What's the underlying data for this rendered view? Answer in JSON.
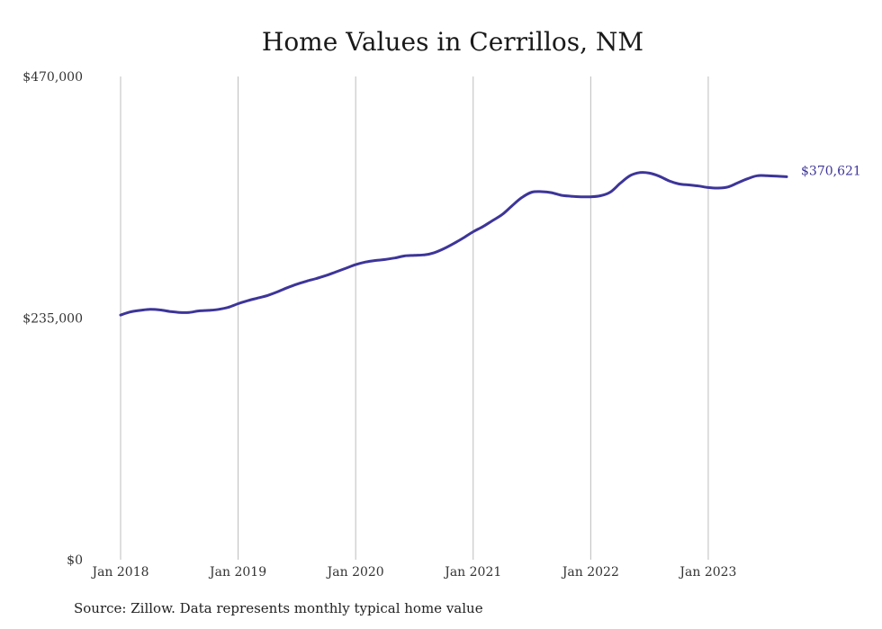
{
  "chart_data": {
    "type": "line",
    "title": "Home Values in Cerrillos, NM",
    "xlabel": "",
    "ylabel": "",
    "ylim": [
      0,
      470000
    ],
    "yticks": [
      {
        "value": 0,
        "label": "$0"
      },
      {
        "value": 235000,
        "label": "$235,000"
      },
      {
        "value": 470000,
        "label": "$470,000"
      }
    ],
    "xticks": [
      {
        "date": "2018-01",
        "label": "Jan 2018"
      },
      {
        "date": "2019-01",
        "label": "Jan 2019"
      },
      {
        "date": "2020-01",
        "label": "Jan 2020"
      },
      {
        "date": "2021-01",
        "label": "Jan 2021"
      },
      {
        "date": "2022-01",
        "label": "Jan 2022"
      },
      {
        "date": "2023-01",
        "label": "Jan 2023"
      }
    ],
    "xlim": [
      "2018-01",
      "2023-09"
    ],
    "grid": "vertical",
    "line_color": "#3d3599",
    "end_label": "$370,621",
    "series": [
      {
        "x": [
          "2018-01",
          "2018-02",
          "2018-03",
          "2018-04",
          "2018-05",
          "2018-06",
          "2018-07",
          "2018-08",
          "2018-09",
          "2018-10",
          "2018-11",
          "2018-12",
          "2019-01",
          "2019-02",
          "2019-03",
          "2019-04",
          "2019-05",
          "2019-06",
          "2019-07",
          "2019-08",
          "2019-09",
          "2019-10",
          "2019-11",
          "2019-12",
          "2020-01",
          "2020-02",
          "2020-03",
          "2020-04",
          "2020-05",
          "2020-06",
          "2020-07",
          "2020-08",
          "2020-09",
          "2020-10",
          "2020-11",
          "2020-12",
          "2021-01",
          "2021-02",
          "2021-03",
          "2021-04",
          "2021-05",
          "2021-06",
          "2021-07",
          "2021-08",
          "2021-09",
          "2021-10",
          "2021-11",
          "2021-12",
          "2022-01",
          "2022-02",
          "2022-03",
          "2022-04",
          "2022-05",
          "2022-06",
          "2022-07",
          "2022-08",
          "2022-09",
          "2022-10",
          "2022-11",
          "2022-12",
          "2023-01",
          "2023-02",
          "2023-03",
          "2023-04",
          "2023-05",
          "2023-06",
          "2023-07",
          "2023-08",
          "2023-09"
        ],
        "values": [
          238000,
          241000,
          242500,
          243500,
          243000,
          241500,
          240500,
          240500,
          242000,
          242500,
          243500,
          245500,
          249000,
          252000,
          254500,
          257000,
          260500,
          264500,
          268000,
          271000,
          273500,
          276500,
          280000,
          283500,
          287000,
          289500,
          291000,
          292000,
          293500,
          295500,
          296000,
          296500,
          298500,
          302500,
          307500,
          313000,
          319000,
          324000,
          330000,
          336000,
          344500,
          352500,
          357500,
          358000,
          357000,
          354500,
          353500,
          353000,
          353000,
          354000,
          357500,
          366000,
          373500,
          376500,
          376000,
          373000,
          368500,
          365500,
          364500,
          363500,
          362000,
          361500,
          362500,
          366500,
          370500,
          373500,
          373500,
          373000,
          372500
        ]
      }
    ]
  },
  "source_note": "Source: Zillow. Data represents monthly typical home value"
}
